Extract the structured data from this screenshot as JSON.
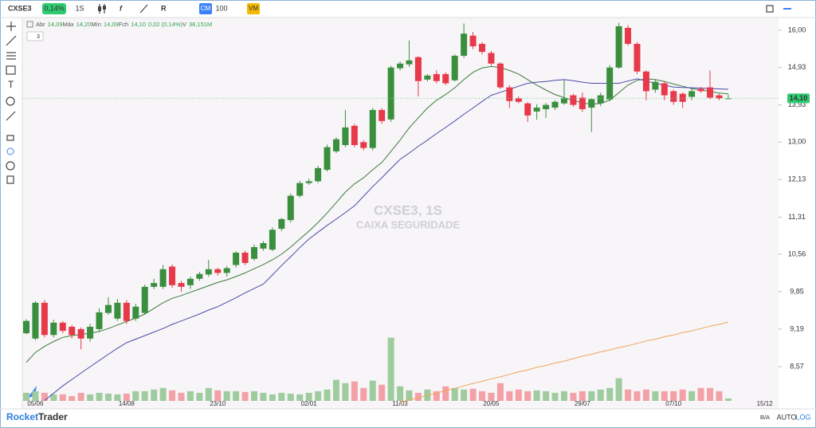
{
  "chart_data": {
    "type": "candlestick",
    "symbol": "CXSE3",
    "change_badge": "0,14%",
    "interval": "1S",
    "toolbar": [
      "CM",
      "100",
      "VM"
    ],
    "ohlc_legend": [
      {
        "label": "Abr",
        "value": "14,09"
      },
      {
        "label": "Máx",
        "value": "14,20"
      },
      {
        "label": "Mín",
        "value": "14,09"
      },
      {
        "label": "Fch",
        "value": "14,10"
      },
      {
        "label": "",
        "value": "0,02 (0,14%)"
      },
      {
        "label": "V",
        "value": "38,151M"
      }
    ],
    "indicator_count": "3",
    "watermark": [
      "CXSE3, 1S",
      "CAIXA SEGURIDADE"
    ],
    "brand": [
      "Rocket",
      "Trader"
    ],
    "footer_buttons": [
      "B/A",
      "AUTO",
      "LOG"
    ],
    "log_scale": true,
    "grid": false,
    "categories": [
      null,
      "05/06",
      null,
      null,
      null,
      null,
      null,
      null,
      null,
      null,
      null,
      "14/08",
      null,
      null,
      null,
      null,
      null,
      null,
      null,
      null,
      null,
      "23/10",
      null,
      null,
      null,
      null,
      null,
      null,
      null,
      null,
      null,
      "02/01",
      null,
      null,
      null,
      null,
      null,
      null,
      null,
      null,
      null,
      "11/03",
      null,
      null,
      null,
      null,
      null,
      null,
      null,
      null,
      null,
      "20/05",
      null,
      null,
      null,
      null,
      null,
      null,
      null,
      null,
      null,
      "29/07",
      null,
      null,
      null,
      null,
      null,
      null,
      null,
      null,
      null,
      "07/10",
      null,
      null,
      null,
      null,
      null,
      null,
      null,
      null,
      null,
      "15/12"
    ],
    "open": [
      9.12,
      9.03,
      9.65,
      9.09,
      9.3,
      9.23,
      9.19,
      9.03,
      9.19,
      9.47,
      9.37,
      9.65,
      9.37,
      9.47,
      9.94,
      9.94,
      10.32,
      10.01,
      9.97,
      10.09,
      10.17,
      10.27,
      10.2,
      10.35,
      10.59,
      10.47,
      10.67,
      10.65,
      11.07,
      11.25,
      11.77,
      12.05,
      12.09,
      12.35,
      12.78,
      12.93,
      13.4,
      13.0,
      12.86,
      13.8,
      13.56,
      14.91,
      15.02,
      15.22,
      14.6,
      14.75,
      14.75,
      14.58,
      15.26,
      15.84,
      15.6,
      15.34,
      15.04,
      14.39,
      14.1,
      13.97,
      13.76,
      13.82,
      13.86,
      13.97,
      14.18,
      14.12,
      13.86,
      13.97,
      14.07,
      14.93,
      16.07,
      15.6,
      14.82,
      14.33,
      14.5,
      14.29,
      14.22,
      14.14,
      14.35,
      14.39,
      14.18,
      14.09,
      null,
      null,
      null,
      null
    ],
    "high": [
      9.36,
      9.68,
      9.7,
      9.35,
      9.33,
      9.26,
      9.22,
      9.28,
      9.55,
      9.75,
      9.72,
      9.7,
      9.63,
      9.98,
      10.09,
      10.35,
      10.36,
      10.05,
      10.13,
      10.22,
      10.45,
      10.3,
      10.33,
      10.62,
      10.63,
      10.75,
      10.82,
      11.1,
      11.3,
      11.82,
      12.1,
      12.15,
      12.44,
      12.94,
      13.12,
      13.8,
      13.45,
      13.05,
      13.85,
      13.85,
      14.98,
      15.1,
      15.7,
      15.25,
      14.75,
      14.85,
      14.8,
      15.3,
      16.2,
      15.95,
      15.65,
      15.4,
      15.08,
      14.45,
      14.15,
      14.0,
      13.95,
      13.98,
      14.05,
      14.6,
      14.22,
      14.25,
      14.1,
      14.25,
      15.0,
      16.22,
      16.15,
      15.65,
      14.85,
      14.6,
      14.55,
      14.33,
      14.26,
      14.35,
      14.4,
      14.85,
      14.22,
      14.2,
      null,
      null,
      null,
      null
    ],
    "low": [
      9.1,
      9.0,
      9.05,
      9.05,
      9.12,
      9.03,
      8.85,
      8.98,
      9.15,
      9.44,
      9.33,
      9.28,
      9.33,
      9.44,
      9.9,
      9.9,
      9.92,
      9.85,
      9.9,
      10.05,
      10.13,
      10.15,
      10.13,
      10.3,
      10.35,
      10.43,
      10.63,
      10.62,
      11.02,
      11.2,
      11.73,
      12.01,
      12.05,
      12.31,
      12.74,
      12.88,
      12.88,
      12.8,
      12.8,
      13.45,
      13.5,
      14.85,
      14.95,
      14.15,
      14.55,
      14.5,
      14.45,
      14.55,
      15.2,
      15.45,
      15.3,
      14.98,
      14.35,
      13.85,
      13.97,
      13.5,
      13.55,
      13.6,
      13.8,
      13.93,
      13.88,
      13.75,
      13.25,
      13.9,
      14.03,
      14.9,
      15.55,
      14.75,
      14.05,
      14.25,
      14.05,
      13.93,
      13.85,
      14.05,
      14.25,
      14.08,
      14.05,
      14.09,
      null,
      null,
      null,
      null
    ],
    "close": [
      9.33,
      9.65,
      9.09,
      9.3,
      9.16,
      9.09,
      9.03,
      9.23,
      9.48,
      9.61,
      9.65,
      9.33,
      9.58,
      9.94,
      10.01,
      10.27,
      9.97,
      9.94,
      10.09,
      10.18,
      10.27,
      10.2,
      10.29,
      10.59,
      10.39,
      10.7,
      10.78,
      11.05,
      11.27,
      11.77,
      12.05,
      12.09,
      12.39,
      12.88,
      13.07,
      13.36,
      12.93,
      12.86,
      13.8,
      13.52,
      14.93,
      15.04,
      15.13,
      14.56,
      14.71,
      14.56,
      14.5,
      15.26,
      15.9,
      15.53,
      15.37,
      15.04,
      14.39,
      14.03,
      14.01,
      13.66,
      13.86,
      13.93,
      14.01,
      14.1,
      13.93,
      13.82,
      14.08,
      14.18,
      14.93,
      16.12,
      15.6,
      14.82,
      14.29,
      14.54,
      14.18,
      14.01,
      14.01,
      14.29,
      14.29,
      14.12,
      14.1,
      14.1,
      null,
      null,
      null,
      null
    ],
    "up_color": "#3a8f3f",
    "down_color": "#e8394a",
    "up_volume_color": "#9fcc9f",
    "down_volume_color": "#f3a1a7",
    "volume": [
      127,
      152,
      127,
      102,
      102,
      76,
      127,
      102,
      127,
      114,
      102,
      114,
      152,
      152,
      178,
      203,
      165,
      127,
      152,
      127,
      203,
      165,
      152,
      152,
      140,
      152,
      127,
      102,
      127,
      114,
      102,
      127,
      152,
      178,
      330,
      279,
      305,
      203,
      318,
      254,
      991,
      229,
      165,
      127,
      178,
      152,
      229,
      203,
      178,
      191,
      152,
      127,
      279,
      152,
      178,
      152,
      165,
      152,
      127,
      152,
      127,
      152,
      152,
      178,
      203,
      356,
      178,
      152,
      178,
      152,
      152,
      152,
      178,
      152,
      203,
      203,
      152,
      38.151,
      null,
      null,
      null,
      null
    ],
    "volume_ylim": [
      0,
      1000
    ],
    "series": [
      {
        "color": "#3d7a3d",
        "values": [
          8.64,
          8.8,
          8.9,
          8.98,
          9.05,
          9.08,
          9.1,
          9.12,
          9.15,
          9.2,
          9.26,
          9.32,
          9.38,
          9.45,
          9.55,
          9.65,
          9.73,
          9.78,
          9.84,
          9.9,
          9.96,
          10.02,
          10.07,
          10.13,
          10.2,
          10.28,
          10.36,
          10.45,
          10.56,
          10.7,
          10.86,
          11.02,
          11.2,
          11.4,
          11.62,
          11.85,
          12.03,
          12.17,
          12.35,
          12.52,
          12.78,
          13.05,
          13.35,
          13.6,
          13.85,
          14.05,
          14.2,
          14.38,
          14.6,
          14.8,
          14.92,
          14.96,
          14.93,
          14.85,
          14.75,
          14.6,
          14.45,
          14.32,
          14.2,
          14.12,
          14.05,
          13.98,
          13.95,
          13.97,
          14.05,
          14.25,
          14.45,
          14.58,
          14.62,
          14.6,
          14.55,
          14.48,
          14.42,
          14.36,
          14.32,
          14.28,
          14.24,
          14.22,
          null,
          null,
          null,
          null
        ]
      },
      {
        "color": "#4b4bab",
        "values": [
          null,
          null,
          8.05,
          8.16,
          8.27,
          8.37,
          8.47,
          8.57,
          8.67,
          8.77,
          8.87,
          8.96,
          9.02,
          9.08,
          9.14,
          9.2,
          9.27,
          9.33,
          9.39,
          9.45,
          9.52,
          9.58,
          9.66,
          9.74,
          9.83,
          9.91,
          9.99,
          10.16,
          10.34,
          10.51,
          10.69,
          10.86,
          11.0,
          11.14,
          11.27,
          11.41,
          11.55,
          11.76,
          11.97,
          12.17,
          12.38,
          12.59,
          12.74,
          12.9,
          13.05,
          13.21,
          13.36,
          13.52,
          13.69,
          13.85,
          14.02,
          14.18,
          14.26,
          14.34,
          14.42,
          14.5,
          14.53,
          14.55,
          14.58,
          14.6,
          14.57,
          14.53,
          14.5,
          14.5,
          14.5,
          14.5,
          14.56,
          14.62,
          14.56,
          14.5,
          14.45,
          14.4,
          14.39,
          14.38,
          14.37,
          14.36,
          14.35,
          14.34,
          null,
          null,
          null,
          null
        ]
      },
      {
        "color": "#f0a55a",
        "values": [
          null,
          null,
          null,
          null,
          null,
          null,
          null,
          null,
          null,
          null,
          null,
          null,
          null,
          null,
          null,
          null,
          null,
          null,
          null,
          null,
          null,
          null,
          null,
          null,
          null,
          null,
          null,
          null,
          null,
          null,
          null,
          null,
          null,
          null,
          null,
          null,
          null,
          null,
          null,
          null,
          null,
          8.02,
          8.06,
          8.09,
          8.13,
          8.16,
          8.2,
          8.23,
          8.27,
          8.31,
          8.34,
          8.38,
          8.41,
          8.45,
          8.49,
          8.52,
          8.56,
          8.59,
          8.63,
          8.66,
          8.7,
          8.74,
          8.77,
          8.81,
          8.84,
          8.88,
          8.91,
          8.95,
          8.99,
          9.02,
          9.06,
          9.09,
          9.13,
          9.16,
          9.2,
          9.24,
          9.27,
          9.31,
          null,
          null,
          null,
          null
        ]
      }
    ],
    "last_price": {
      "value": 14.1,
      "label": "14,10"
    },
    "ylim": [
      8.02,
      16.43
    ],
    "yticks": [
      {
        "value": 16,
        "label": "16,00"
      },
      {
        "value": 14.93,
        "label": "14,93"
      },
      {
        "value": 13.93,
        "label": "13,93"
      },
      {
        "value": 13,
        "label": "13,00"
      },
      {
        "value": 12.13,
        "label": "12,13"
      },
      {
        "value": 11.31,
        "label": "11,31"
      },
      {
        "value": 10.56,
        "label": "10,56"
      },
      {
        "value": 9.85,
        "label": "9,85"
      },
      {
        "value": 9.19,
        "label": "9,19"
      },
      {
        "value": 8.57,
        "label": "8,57"
      }
    ]
  }
}
